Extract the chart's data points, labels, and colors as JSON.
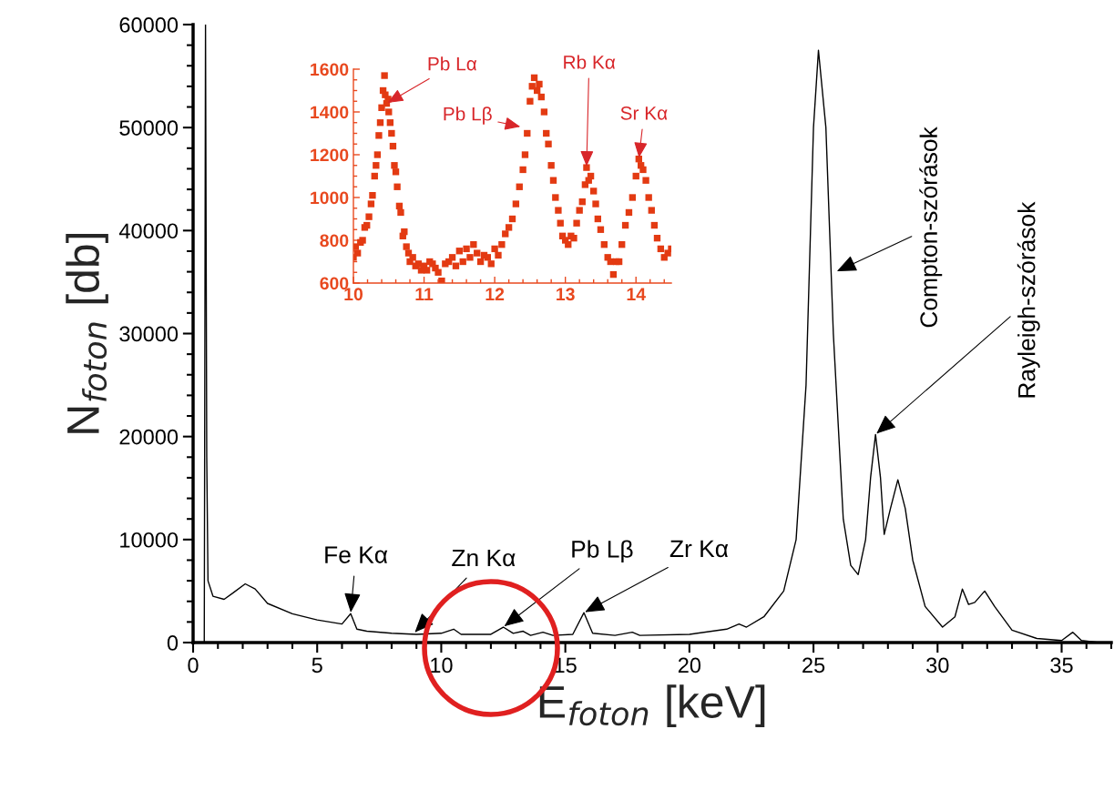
{
  "chart_data": [
    {
      "type": "line",
      "xlabel": "E$_{foton}$ [keV]",
      "ylabel": "N$_{foton}$ [db]",
      "xlim": [
        0,
        37
      ],
      "xticks": [
        0,
        5,
        10,
        15,
        20,
        25,
        30,
        35
      ],
      "ylim": [
        0,
        60000
      ],
      "yticks": [
        0,
        10000,
        20000,
        30000,
        40000,
        50000,
        60000
      ],
      "marker": "none",
      "line_style": "solid",
      "grid": false,
      "legend": false,
      "series": [
        {
          "color": "#000000",
          "x": [
            0.45,
            0.5,
            0.55,
            0.6,
            0.8,
            1.25,
            1.6,
            2.1,
            2.5,
            3.0,
            4.0,
            5.0,
            6.0,
            6.35,
            6.6,
            7.0,
            8.0,
            9.0,
            10.0,
            10.5,
            10.8,
            12.0,
            12.5,
            12.9,
            13.3,
            13.6,
            14.1,
            14.5,
            15.3,
            15.75,
            16.1,
            17.0,
            17.7,
            18.0,
            20.0,
            21.5,
            22.0,
            22.3,
            23.0,
            23.8,
            24.3,
            24.7,
            25.0,
            25.2,
            25.5,
            25.8,
            26.2,
            26.5,
            26.8,
            27.1,
            27.3,
            27.5,
            27.7,
            27.85,
            28.1,
            28.4,
            28.7,
            29.0,
            29.5,
            30.2,
            30.7,
            31.0,
            31.25,
            31.5,
            31.9,
            32.3,
            33.0,
            34.0,
            35.0,
            35.45,
            35.8,
            36.5,
            36.9
          ],
          "values": [
            0,
            60000,
            18000,
            6000,
            4500,
            4200,
            4800,
            5700,
            5200,
            3800,
            2800,
            2200,
            1800,
            2800,
            1300,
            1100,
            900,
            800,
            900,
            1300,
            800,
            800,
            1500,
            900,
            1100,
            700,
            1000,
            700,
            800,
            2900,
            900,
            700,
            1000,
            700,
            800,
            1300,
            1800,
            1500,
            2500,
            5000,
            10000,
            25000,
            50000,
            57500,
            50000,
            30000,
            12000,
            7500,
            6600,
            10000,
            16000,
            20200,
            16000,
            10500,
            13000,
            15800,
            13000,
            8000,
            3500,
            1500,
            2500,
            5200,
            3700,
            3900,
            5000,
            3500,
            1200,
            400,
            200,
            1000,
            200,
            0,
            0
          ]
        }
      ],
      "annotations": [
        {
          "text": "Fe Kα",
          "x": 6.35,
          "y": 2800
        },
        {
          "text": "Zn Kα",
          "x": 8.9,
          "y": 900
        },
        {
          "text": "Pb Lβ",
          "x": 12.5,
          "y": 1500
        },
        {
          "text": "Zr Kα",
          "x": 15.75,
          "y": 2900
        },
        {
          "text": "Compton-szórások",
          "x": 25.9,
          "y": 36000
        },
        {
          "text": "Rayleigh-szórások",
          "x": 27.5,
          "y": 20200
        }
      ]
    },
    {
      "type": "scatter",
      "xlim": [
        10,
        14.5
      ],
      "xticks": [
        10,
        11,
        12,
        13,
        14
      ],
      "ylim": [
        600,
        1600
      ],
      "yticks": [
        600,
        800,
        1000,
        1200,
        1400,
        1600
      ],
      "marker": "square",
      "grid": false,
      "legend": false,
      "series": [
        {
          "color": "#e33a12",
          "x": [
            10.0,
            10.03,
            10.06,
            10.1,
            10.13,
            10.16,
            10.19,
            10.22,
            10.25,
            10.27,
            10.3,
            10.32,
            10.34,
            10.36,
            10.38,
            10.4,
            10.42,
            10.44,
            10.45,
            10.47,
            10.49,
            10.5,
            10.52,
            10.54,
            10.56,
            10.58,
            10.6,
            10.62,
            10.65,
            10.67,
            10.7,
            10.72,
            10.75,
            10.78,
            10.8,
            10.84,
            10.88,
            10.92,
            10.96,
            11.0,
            11.04,
            11.08,
            11.12,
            11.16,
            11.2,
            11.25,
            11.3,
            11.35,
            11.4,
            11.45,
            11.5,
            11.55,
            11.6,
            11.65,
            11.7,
            11.75,
            11.8,
            11.85,
            11.9,
            11.95,
            12.0,
            12.05,
            12.1,
            12.15,
            12.2,
            12.25,
            12.3,
            12.35,
            12.4,
            12.43,
            12.46,
            12.5,
            12.53,
            12.56,
            12.6,
            12.63,
            12.66,
            12.7,
            12.73,
            12.76,
            12.8,
            12.83,
            12.86,
            12.9,
            12.93,
            12.96,
            13.0,
            13.04,
            13.08,
            13.12,
            13.16,
            13.2,
            13.24,
            13.28,
            13.3,
            13.33,
            13.36,
            13.4,
            13.43,
            13.46,
            13.5,
            13.55,
            13.6,
            13.64,
            13.68,
            13.72,
            13.76,
            13.8,
            13.85,
            13.9,
            13.95,
            14.0,
            14.04,
            14.07,
            14.1,
            14.14,
            14.18,
            14.22,
            14.26,
            14.3,
            14.35,
            14.4,
            14.45,
            14.5
          ],
          "values": [
            720,
            770,
            740,
            790,
            800,
            860,
            870,
            910,
            970,
            1010,
            1100,
            1150,
            1200,
            1290,
            1350,
            1420,
            1500,
            1570,
            1480,
            1440,
            1460,
            1400,
            1350,
            1300,
            1240,
            1150,
            1120,
            1050,
            960,
            930,
            820,
            840,
            770,
            740,
            700,
            720,
            680,
            690,
            660,
            680,
            660,
            700,
            690,
            670,
            650,
            610,
            690,
            700,
            720,
            680,
            750,
            700,
            760,
            720,
            780,
            740,
            700,
            730,
            720,
            690,
            760,
            730,
            780,
            830,
            860,
            900,
            970,
            1050,
            1130,
            1200,
            1300,
            1450,
            1520,
            1560,
            1500,
            1530,
            1470,
            1400,
            1300,
            1250,
            1150,
            1080,
            1000,
            940,
            880,
            820,
            800,
            780,
            820,
            810,
            880,
            940,
            980,
            1060,
            1140,
            1080,
            1100,
            1030,
            970,
            900,
            850,
            780,
            720,
            700,
            640,
            700,
            700,
            780,
            870,
            930,
            1000,
            1100,
            1180,
            1150,
            1130,
            1080,
            1000,
            940,
            870,
            810,
            760,
            720,
            740,
            760
          ]
        }
      ],
      "annotations": [
        {
          "text": "Pb Lα",
          "x": 10.47,
          "y": 1440
        },
        {
          "text": "Pb Lβ",
          "x": 12.38,
          "y": 1330
        },
        {
          "text": "Rb Kα",
          "x": 13.3,
          "y": 1140
        },
        {
          "text": "Sr Kα",
          "x": 14.04,
          "y": 1180
        }
      ]
    }
  ]
}
